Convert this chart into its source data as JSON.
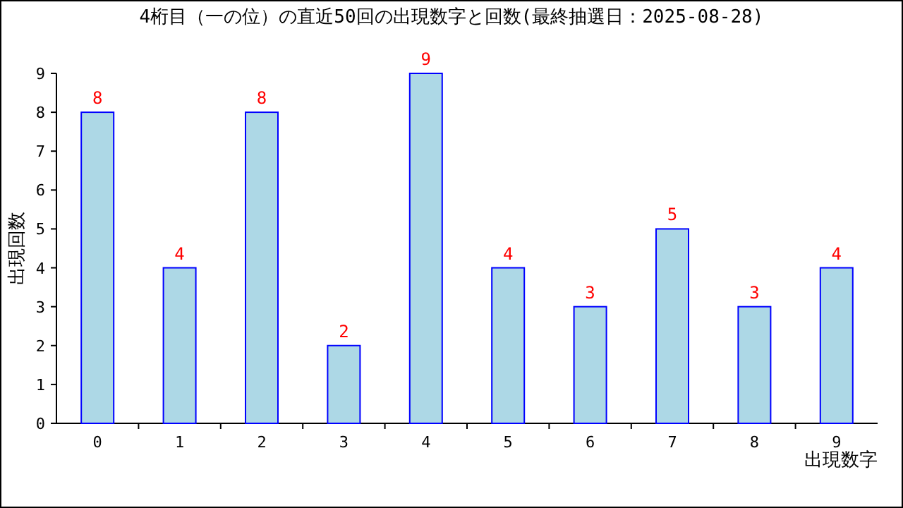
{
  "chart_data": {
    "type": "bar",
    "title": "4桁目（一の位）の直近50回の出現数字と回数(最終抽選日：2025-08-28)",
    "xlabel": "出現数字",
    "ylabel": "出現回数",
    "categories": [
      "0",
      "1",
      "2",
      "3",
      "4",
      "5",
      "6",
      "7",
      "8",
      "9"
    ],
    "values": [
      8,
      4,
      8,
      2,
      9,
      4,
      3,
      5,
      3,
      4
    ],
    "color": "#add8e6",
    "ylim": [
      0,
      9
    ],
    "yticks": [
      0,
      1,
      2,
      3,
      4,
      5,
      6,
      7,
      8,
      9
    ],
    "grid": false,
    "data_labels": true
  }
}
